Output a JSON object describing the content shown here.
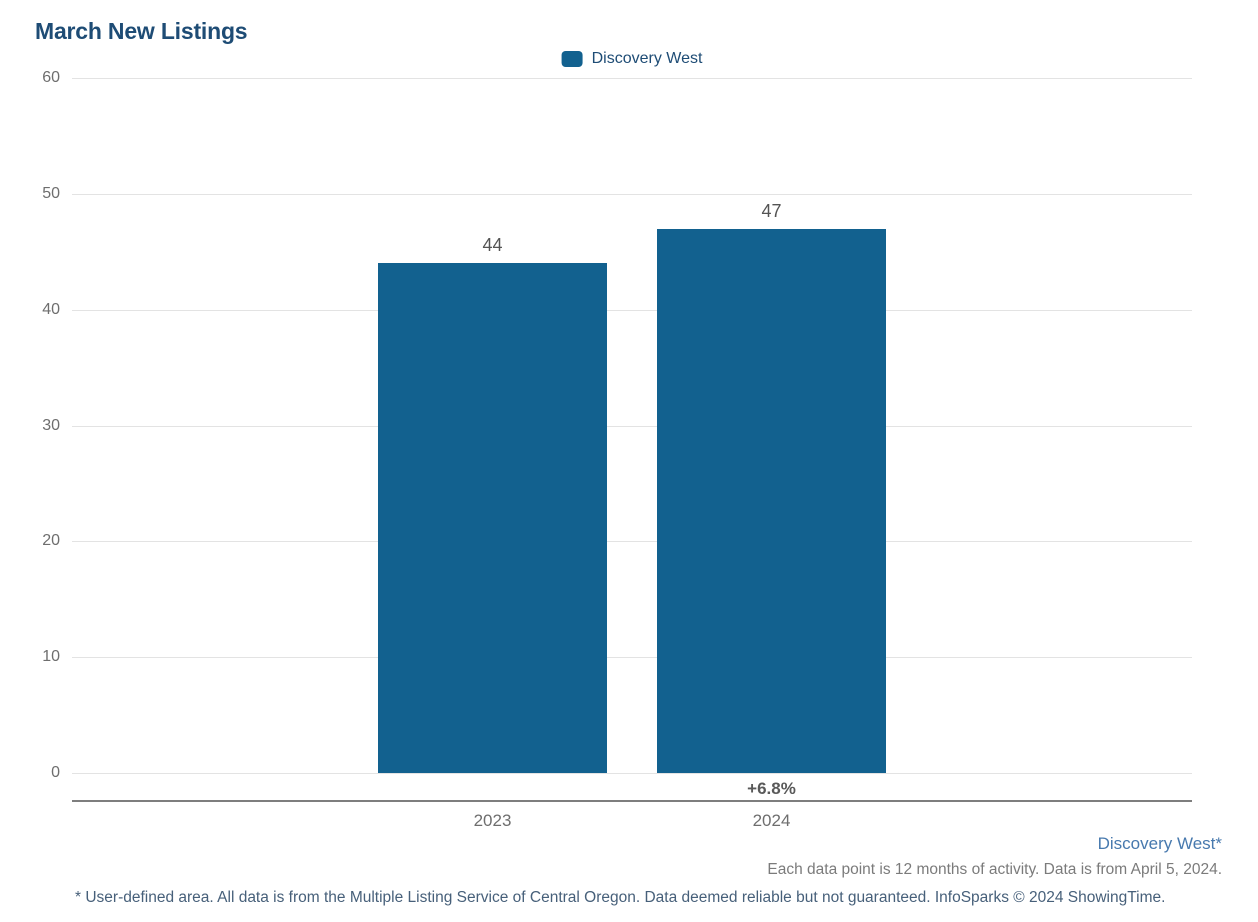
{
  "title": "March New Listings",
  "legend": {
    "label": "Discovery West",
    "swatch_color": "#12618F"
  },
  "chart_data": {
    "type": "bar",
    "title": "March New Listings",
    "categories": [
      "2023",
      "2024"
    ],
    "series": [
      {
        "name": "Discovery West",
        "values": [
          44,
          47
        ],
        "color": "#12618F"
      }
    ],
    "value_labels": [
      "44",
      "47"
    ],
    "ylim": [
      0,
      60
    ],
    "yticks": [
      0,
      10,
      20,
      30,
      40,
      50,
      60
    ],
    "grid": "horizontal",
    "legend_position": "top-center",
    "change_annotation": {
      "text": "+6.8%",
      "category": "2024"
    }
  },
  "footer": {
    "series_note": "Discovery West*",
    "data_note": "Each data point is 12 months of activity. Data is from April 5, 2024.",
    "disclaimer": "* User-defined area. All data is from the Multiple Listing Service of Central Oregon. Data deemed reliable but not guaranteed. InfoSparks © 2024 ShowingTime."
  },
  "colors": {
    "title_text": "#1E4C75",
    "legend_text": "#1E4C75",
    "bar": "#12618F",
    "gridline": "#E3E3E3",
    "tick_text": "#6E6E6E",
    "value_label_text": "#545454",
    "change_text": "#595959",
    "axis_line": "#7E7E7E",
    "footer_series_note_text": "#4779AE",
    "footer_data_note_text": "#7B7B7B",
    "footer_disclaimer_text": "#47607A"
  }
}
